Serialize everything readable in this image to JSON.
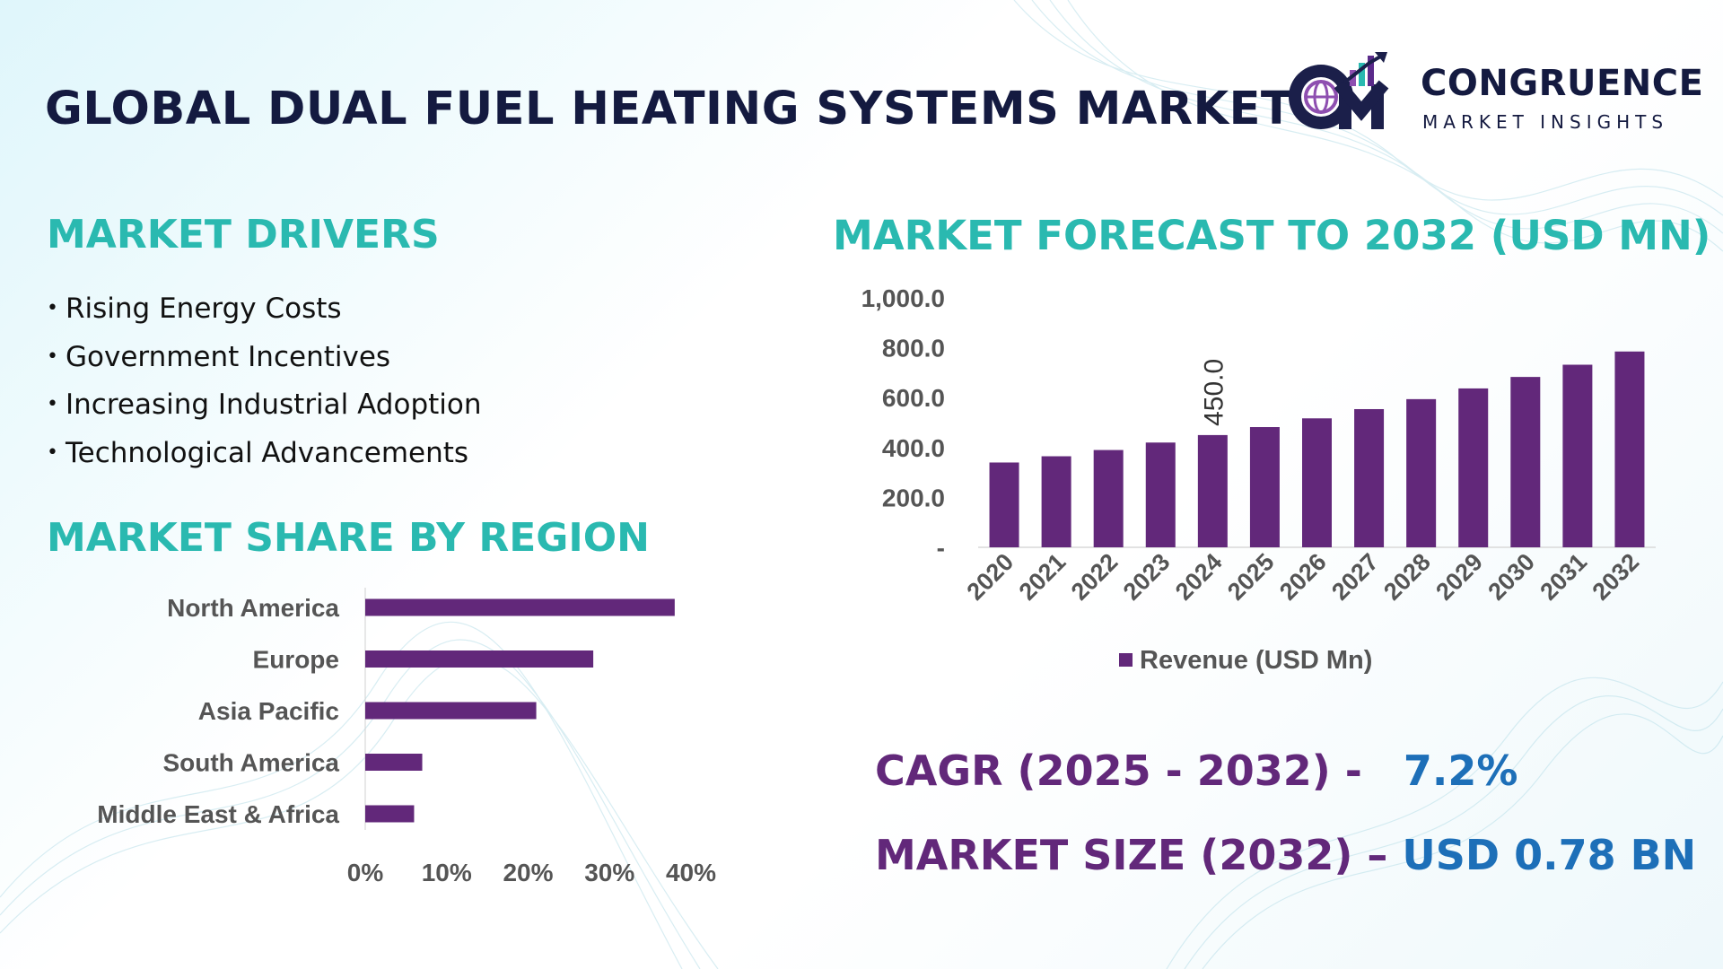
{
  "title": "GLOBAL DUAL FUEL HEATING SYSTEMS MARKET",
  "logo": {
    "name": "CONGRUENCE",
    "tagline": "MARKET INSIGHTS"
  },
  "colors": {
    "title": "#141a40",
    "heading": "#2ab9b0",
    "bar": "#62287a",
    "kpi_label": "#62287a",
    "kpi_value": "#1d6fb8",
    "axis_text": "#555555"
  },
  "drivers": {
    "heading": "MARKET DRIVERS",
    "items": [
      "Rising Energy Costs",
      "Government Incentives",
      "Increasing Industrial Adoption",
      "Technological Advancements"
    ]
  },
  "region": {
    "heading": "MARKET SHARE BY REGION"
  },
  "forecast": {
    "heading": "MARKET FORECAST TO 2032 (USD MN)"
  },
  "chart_data": [
    {
      "type": "bar",
      "orientation": "horizontal",
      "title": "MARKET SHARE BY REGION",
      "categories": [
        "North America",
        "Europe",
        "Asia Pacific",
        "South America",
        "Middle East & Africa"
      ],
      "values": [
        38,
        28,
        21,
        7,
        6
      ],
      "unit": "%",
      "xlim": [
        0,
        40
      ],
      "xticks": [
        "0%",
        "10%",
        "20%",
        "30%",
        "40%"
      ]
    },
    {
      "type": "bar",
      "title": "MARKET FORECAST TO 2032 (USD MN)",
      "categories": [
        "2020",
        "2021",
        "2022",
        "2023",
        "2024",
        "2025",
        "2026",
        "2027",
        "2028",
        "2029",
        "2030",
        "2031",
        "2032"
      ],
      "series": [
        {
          "name": "Revenue (USD Mn)",
          "values": [
            340,
            365,
            390,
            420,
            450,
            482,
            517,
            554,
            594,
            637,
            683,
            732,
            785
          ]
        }
      ],
      "ylim": [
        0,
        1000
      ],
      "yticks": [
        "-",
        "200.0",
        "400.0",
        "600.0",
        "800.0",
        "1,000.0"
      ],
      "annotations": [
        {
          "category": "2024",
          "label": "450.0"
        }
      ],
      "legend": "bottom"
    }
  ],
  "kpis": {
    "cagr_label": "CAGR (2025 - 2032) -",
    "cagr_value": "7.2%",
    "size_label": "MARKET SIZE (2032) –",
    "size_value": "USD 0.78 BN"
  }
}
